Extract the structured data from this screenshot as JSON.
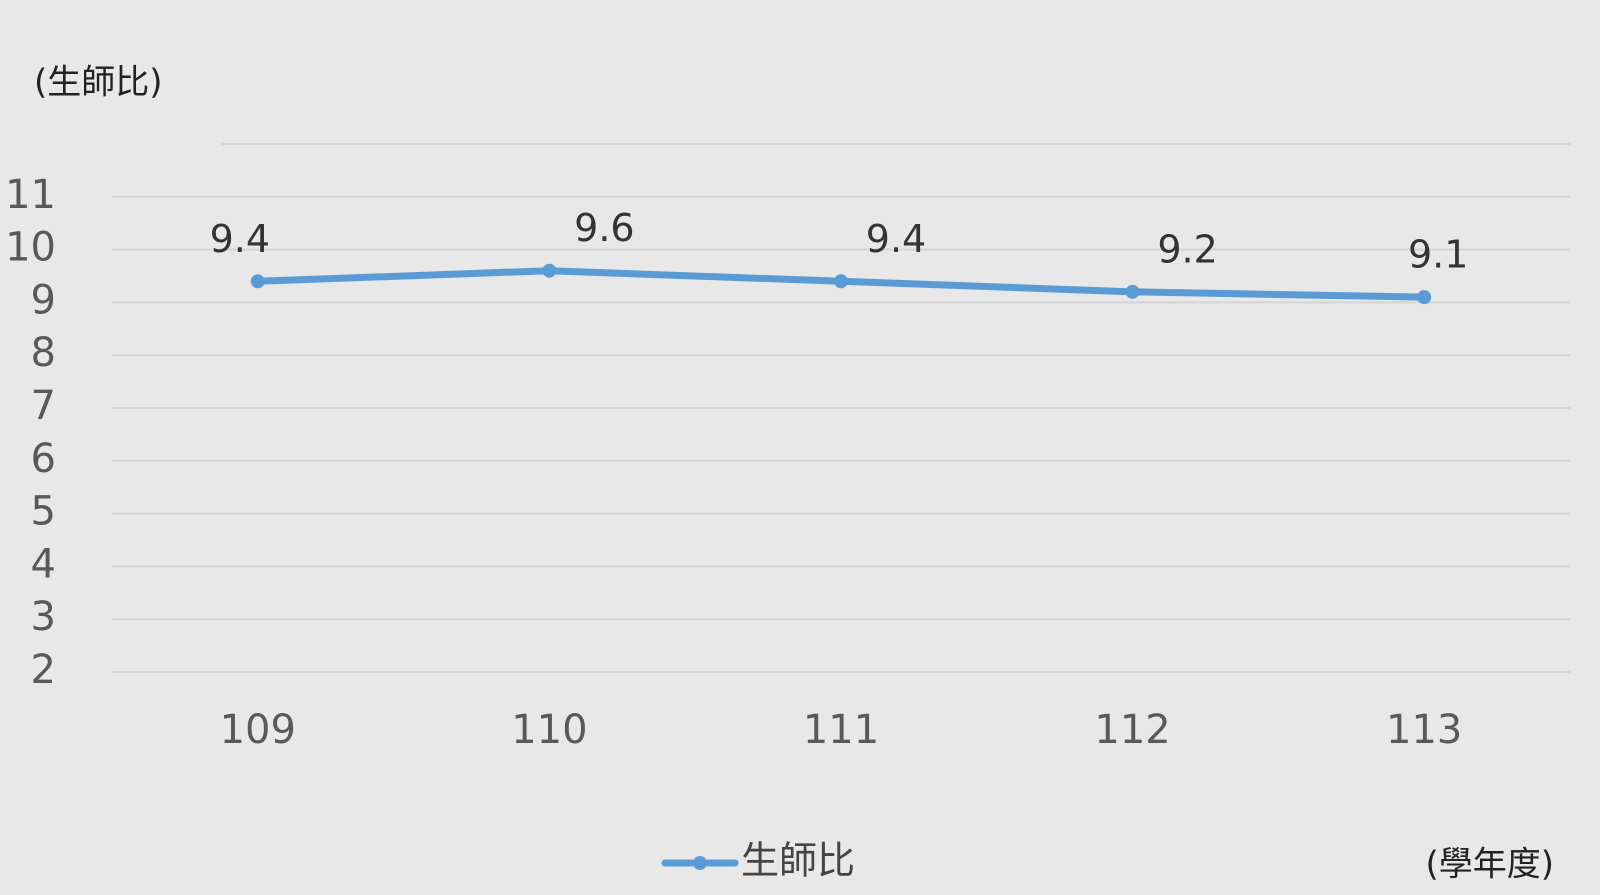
{
  "chart_data": {
    "type": "line",
    "y_axis_label": "(生師比)",
    "x_axis_label": "(學年度)",
    "categories": [
      "109",
      "110",
      "111",
      "112",
      "113"
    ],
    "series": [
      {
        "name": "生師比",
        "color": "#5b9bd5",
        "values": [
          9.4,
          9.6,
          9.4,
          9.2,
          9.1
        ]
      }
    ],
    "ylim": [
      2,
      12
    ],
    "yticks": [
      2,
      3,
      4,
      5,
      6,
      7,
      8,
      9,
      10,
      11
    ],
    "grid": true,
    "legend": "bottom"
  }
}
